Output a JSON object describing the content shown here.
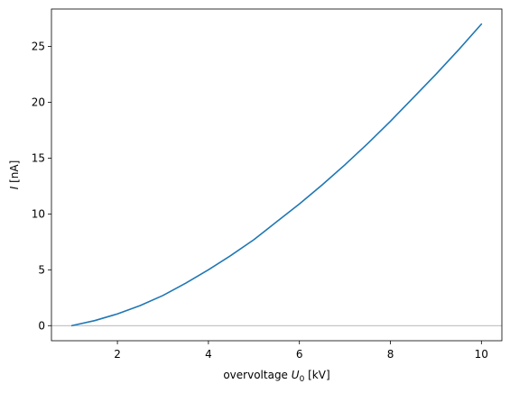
{
  "chart_data": {
    "type": "line",
    "title": "",
    "xlabel": {
      "prefix": "overvoltage ",
      "symbol": "U",
      "subscript": "0",
      "suffix": " [kV]"
    },
    "ylabel": {
      "symbol": "I",
      "suffix": " [nA]"
    },
    "xlim": [
      0.55,
      10.45
    ],
    "ylim": [
      -1.35,
      28.35
    ],
    "xticks": [
      2,
      4,
      6,
      8,
      10
    ],
    "yticks": [
      0,
      5,
      10,
      15,
      20,
      25
    ],
    "grid": false,
    "legend": "none",
    "reference_line": {
      "y": 0,
      "color": "#a0a0a0"
    },
    "series": [
      {
        "color": "#1f77b4",
        "x": [
          1.0,
          1.5,
          2.0,
          2.5,
          3.0,
          3.5,
          4.0,
          4.5,
          5.0,
          5.5,
          6.0,
          6.5,
          7.0,
          7.5,
          8.0,
          8.5,
          9.0,
          9.5,
          10.0
        ],
        "y": [
          0.0,
          0.45,
          1.05,
          1.8,
          2.7,
          3.8,
          5.0,
          6.3,
          7.7,
          9.3,
          10.9,
          12.6,
          14.4,
          16.3,
          18.3,
          20.4,
          22.5,
          24.7,
          27.0
        ]
      }
    ]
  }
}
